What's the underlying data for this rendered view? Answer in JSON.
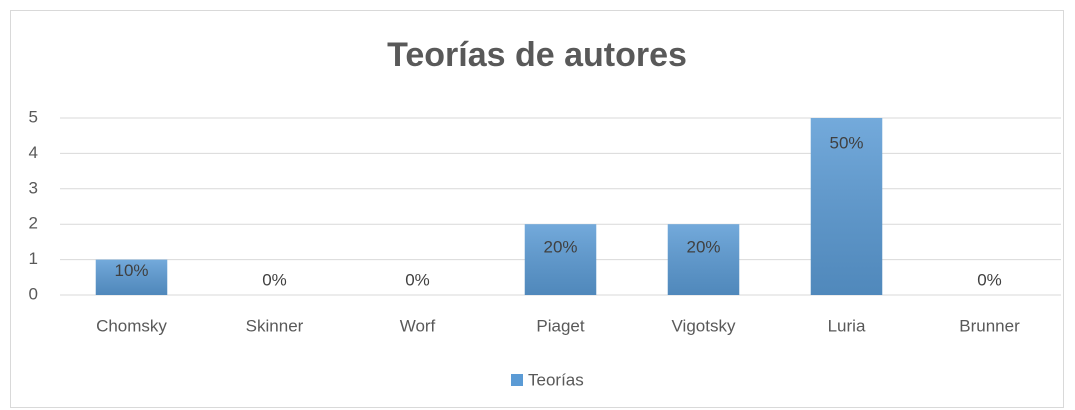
{
  "chart_data": {
    "type": "bar",
    "title": "Teorías de autores",
    "categories": [
      "Chomsky",
      "Skinner",
      "Worf",
      "Piaget",
      "Vigotsky",
      "Luria",
      "Brunner"
    ],
    "series": [
      {
        "name": "Teorías",
        "color": "#5b9bd5",
        "values": [
          1,
          0,
          0,
          2,
          2,
          5,
          0
        ],
        "value_labels": [
          "10%",
          "0%",
          "0%",
          "20%",
          "20%",
          "50%",
          "0%"
        ]
      }
    ],
    "ylim": [
      0,
      5
    ],
    "yticks": [
      0,
      1,
      2,
      3,
      4,
      5
    ],
    "grid": true,
    "legend": "bottom"
  }
}
